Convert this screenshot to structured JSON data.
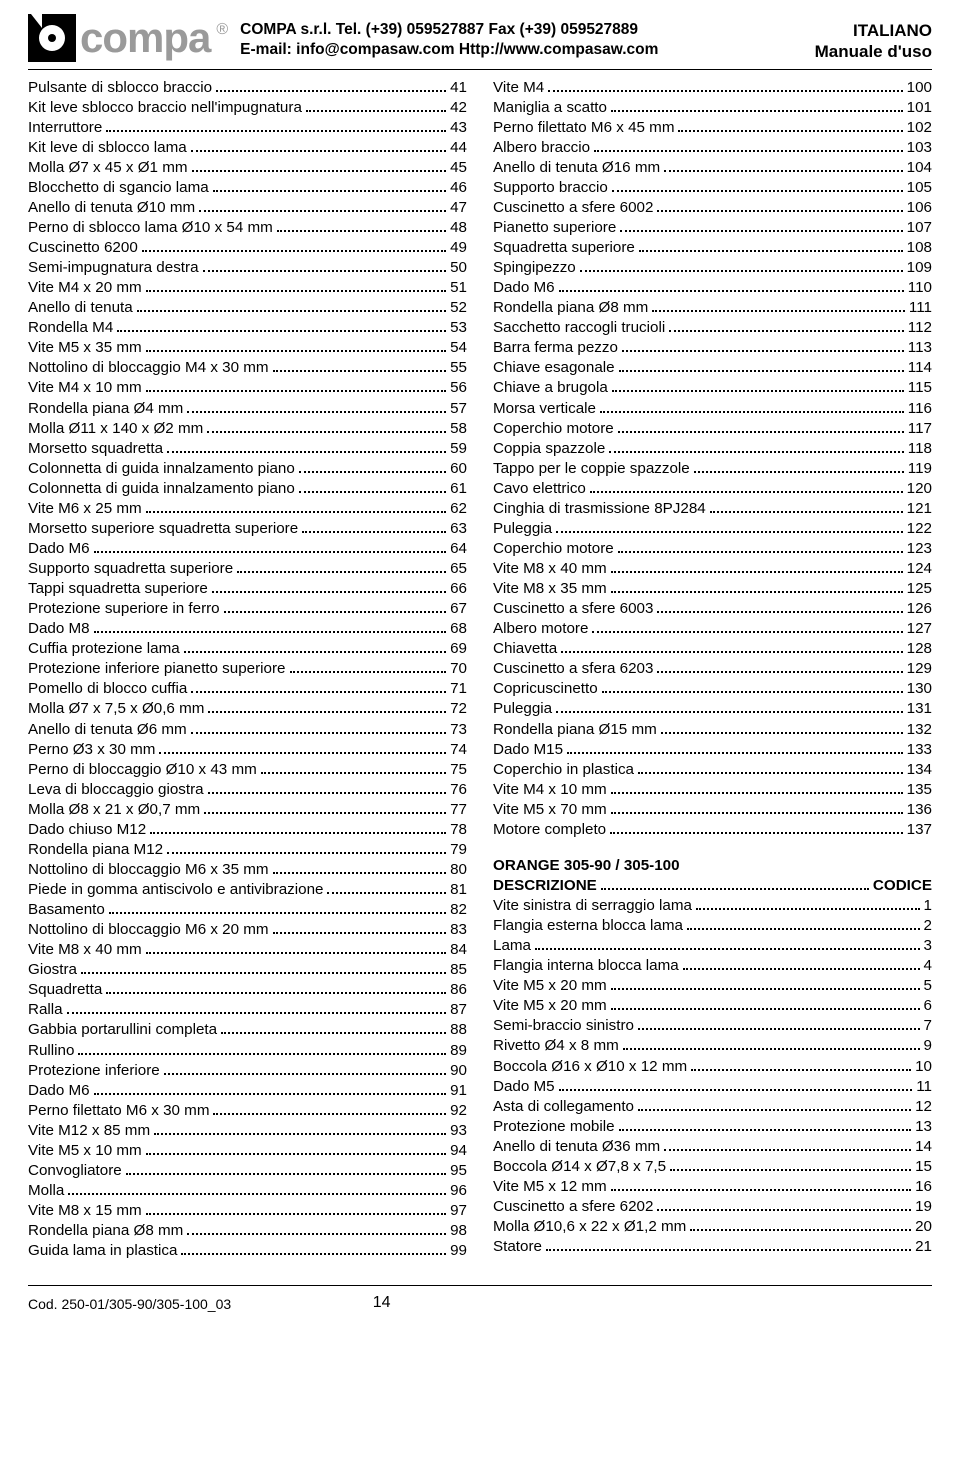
{
  "header": {
    "logo_text": "compa",
    "reg_mark": "®",
    "company": "COMPA s.r.l.",
    "tel_label": "Tel.",
    "tel": "(+39) 059527887",
    "fax_label": "Fax",
    "fax": "(+39) 059527889",
    "email_label": "E-mail:",
    "email": "info@compasaw.com",
    "url_label": "Http://",
    "url": "www.compasaw.com",
    "lang": "ITALIANO",
    "doc_type": "Manuale d'uso"
  },
  "left": [
    {
      "label": "Pulsante di sblocco braccio",
      "page": "41"
    },
    {
      "label": "Kit leve sblocco braccio nell'impugnatura",
      "page": "42"
    },
    {
      "label": "Interruttore",
      "page": "43"
    },
    {
      "label": "Kit leve di sblocco lama",
      "page": "44"
    },
    {
      "label": "Molla Ø7 x 45 x Ø1 mm",
      "page": "45"
    },
    {
      "label": "Blocchetto di sgancio lama",
      "page": "46"
    },
    {
      "label": "Anello di tenuta Ø10 mm",
      "page": "47"
    },
    {
      "label": "Perno di sblocco lama Ø10 x 54 mm",
      "page": "48"
    },
    {
      "label": "Cuscinetto 6200",
      "page": "49"
    },
    {
      "label": "Semi-impugnatura destra",
      "page": "50"
    },
    {
      "label": "Vite M4 x 20 mm",
      "page": "51"
    },
    {
      "label": "Anello di tenuta",
      "page": "52"
    },
    {
      "label": "Rondella M4",
      "page": "53"
    },
    {
      "label": "Vite M5 x 35 mm",
      "page": "54"
    },
    {
      "label": "Nottolino di bloccaggio M4 x 30 mm",
      "page": "55"
    },
    {
      "label": "Vite M4 x 10 mm",
      "page": "56"
    },
    {
      "label": "Rondella piana Ø4 mm",
      "page": "57"
    },
    {
      "label": "Molla Ø11 x 140 x Ø2 mm",
      "page": "58"
    },
    {
      "label": "Morsetto squadretta",
      "page": "59"
    },
    {
      "label": "Colonnetta di guida innalzamento piano",
      "page": "60"
    },
    {
      "label": "Colonnetta di guida innalzamento piano",
      "page": "61"
    },
    {
      "label": "Vite M6 x 25 mm",
      "page": "62"
    },
    {
      "label": "Morsetto superiore squadretta superiore",
      "page": "63"
    },
    {
      "label": "Dado M6",
      "page": "64"
    },
    {
      "label": "Supporto squadretta superiore",
      "page": "65"
    },
    {
      "label": "Tappi squadretta superiore",
      "page": "66"
    },
    {
      "label": "Protezione superiore in ferro",
      "page": "67"
    },
    {
      "label": "Dado M8",
      "page": "68"
    },
    {
      "label": "Cuffia protezione lama",
      "page": "69"
    },
    {
      "label": "Protezione inferiore pianetto superiore",
      "page": "70"
    },
    {
      "label": "Pomello di blocco cuffia",
      "page": "71"
    },
    {
      "label": "Molla Ø7 x 7,5 x Ø0,6 mm",
      "page": "72"
    },
    {
      "label": "Anello di tenuta Ø6 mm",
      "page": "73"
    },
    {
      "label": "Perno Ø3 x 30 mm",
      "page": "74"
    },
    {
      "label": "Perno di bloccaggio Ø10 x 43 mm",
      "page": "75"
    },
    {
      "label": "Leva di bloccaggio giostra",
      "page": "76"
    },
    {
      "label": "Molla Ø8 x 21 x Ø0,7 mm",
      "page": "77"
    },
    {
      "label": "Dado chiuso M12",
      "page": "78"
    },
    {
      "label": "Rondella piana M12",
      "page": "79"
    },
    {
      "label": "Nottolino di bloccaggio M6 x 35 mm",
      "page": "80"
    },
    {
      "label": "Piede in gomma antiscivolo e antivibrazione",
      "page": "81"
    },
    {
      "label": "Basamento",
      "page": "82"
    },
    {
      "label": "Nottolino di bloccaggio M6 x 20 mm",
      "page": "83"
    },
    {
      "label": "Vite M8 x 40 mm",
      "page": "84"
    },
    {
      "label": "Giostra",
      "page": "85"
    },
    {
      "label": "Squadretta",
      "page": "86"
    },
    {
      "label": "Ralla",
      "page": "87"
    },
    {
      "label": "Gabbia portarullini completa",
      "page": "88"
    },
    {
      "label": "Rullino",
      "page": "89"
    },
    {
      "label": "Protezione inferiore",
      "page": "90"
    },
    {
      "label": "Dado M6",
      "page": "91"
    },
    {
      "label": "Perno filettato M6 x 30 mm",
      "page": "92"
    },
    {
      "label": "Vite M12 x 85 mm",
      "page": "93"
    },
    {
      "label": "Vite M5 x 10 mm",
      "page": "94"
    },
    {
      "label": "Convogliatore",
      "page": "95"
    },
    {
      "label": "Molla",
      "page": "96"
    },
    {
      "label": "Vite M8 x 15 mm",
      "page": "97"
    },
    {
      "label": "Rondella piana Ø8 mm",
      "page": "98"
    },
    {
      "label": "Guida lama in plastica",
      "page": "99"
    }
  ],
  "right_top": [
    {
      "label": "Vite M4",
      "page": "100"
    },
    {
      "label": "Maniglia a scatto",
      "page": "101"
    },
    {
      "label": "Perno filettato M6 x 45 mm",
      "page": "102"
    },
    {
      "label": "Albero braccio",
      "page": "103"
    },
    {
      "label": "Anello di tenuta Ø16 mm",
      "page": "104"
    },
    {
      "label": "Supporto braccio",
      "page": "105"
    },
    {
      "label": "Cuscinetto a sfere 6002",
      "page": "106"
    },
    {
      "label": "Pianetto superiore",
      "page": "107"
    },
    {
      "label": "Squadretta superiore",
      "page": "108"
    },
    {
      "label": "Spingipezzo",
      "page": "109"
    },
    {
      "label": "Dado M6",
      "page": "110"
    },
    {
      "label": "Rondella piana Ø8 mm",
      "page": "111"
    },
    {
      "label": "Sacchetto raccogli trucioli",
      "page": "112"
    },
    {
      "label": "Barra ferma pezzo",
      "page": "113"
    },
    {
      "label": "Chiave esagonale",
      "page": "114"
    },
    {
      "label": "Chiave a brugola",
      "page": "115"
    },
    {
      "label": "Morsa verticale",
      "page": "116"
    },
    {
      "label": "Coperchio motore",
      "page": "117"
    },
    {
      "label": "Coppia spazzole",
      "page": "118"
    },
    {
      "label": "Tappo per le coppie spazzole",
      "page": "119"
    },
    {
      "label": "Cavo elettrico",
      "page": "120"
    },
    {
      "label": "Cinghia di trasmissione 8PJ284",
      "page": "121"
    },
    {
      "label": "Puleggia",
      "page": "122"
    },
    {
      "label": "Coperchio motore",
      "page": "123"
    },
    {
      "label": "Vite M8 x 40 mm",
      "page": "124"
    },
    {
      "label": "Vite M8 x 35 mm",
      "page": "125"
    },
    {
      "label": "Cuscinetto a sfere 6003",
      "page": "126"
    },
    {
      "label": "Albero motore",
      "page": "127"
    },
    {
      "label": "Chiavetta",
      "page": "128"
    },
    {
      "label": "Cuscinetto a sfera 6203",
      "page": "129"
    },
    {
      "label": "Copricuscinetto",
      "page": "130"
    },
    {
      "label": "Puleggia",
      "page": "131"
    },
    {
      "label": "Rondella piana Ø15 mm",
      "page": "132"
    },
    {
      "label": "Dado M15",
      "page": "133"
    },
    {
      "label": "Coperchio in plastica",
      "page": "134"
    },
    {
      "label": "Vite M4 x 10 mm",
      "page": "135"
    },
    {
      "label": "Vite M5 x 70 mm",
      "page": "136"
    },
    {
      "label": "Motore completo",
      "page": "137"
    }
  ],
  "section2_title": "ORANGE 305-90 / 305-100",
  "section2_head": {
    "label": "DESCRIZIONE",
    "page": "CODICE"
  },
  "right_bottom": [
    {
      "label": "Vite sinistra di serraggio lama",
      "page": "1"
    },
    {
      "label": "Flangia esterna blocca lama",
      "page": "2"
    },
    {
      "label": "Lama",
      "page": "3"
    },
    {
      "label": "Flangia interna blocca lama",
      "page": "4"
    },
    {
      "label": "Vite M5 x 20 mm",
      "page": "5"
    },
    {
      "label": "Vite M5 x 20 mm",
      "page": "6"
    },
    {
      "label": "Semi-braccio sinistro",
      "page": "7"
    },
    {
      "label": "Rivetto Ø4 x 8 mm",
      "page": "9"
    },
    {
      "label": "Boccola Ø16 x Ø10 x 12 mm",
      "page": "10"
    },
    {
      "label": "Dado M5",
      "page": "11"
    },
    {
      "label": "Asta di collegamento",
      "page": "12"
    },
    {
      "label": "Protezione mobile",
      "page": "13"
    },
    {
      "label": "Anello di tenuta Ø36 mm",
      "page": "14"
    },
    {
      "label": "Boccola Ø14 x Ø7,8 x 7,5",
      "page": "15"
    },
    {
      "label": "Vite M5 x 12 mm",
      "page": "16"
    },
    {
      "label": "Cuscinetto a sfere 6202",
      "page": "19"
    },
    {
      "label": "Molla Ø10,6 x 22 x Ø1,2 mm",
      "page": "20"
    },
    {
      "label": "Statore",
      "page": "21"
    }
  ],
  "footer": {
    "code": "Cod. 250-01/305-90/305-100_03",
    "page": "14"
  }
}
